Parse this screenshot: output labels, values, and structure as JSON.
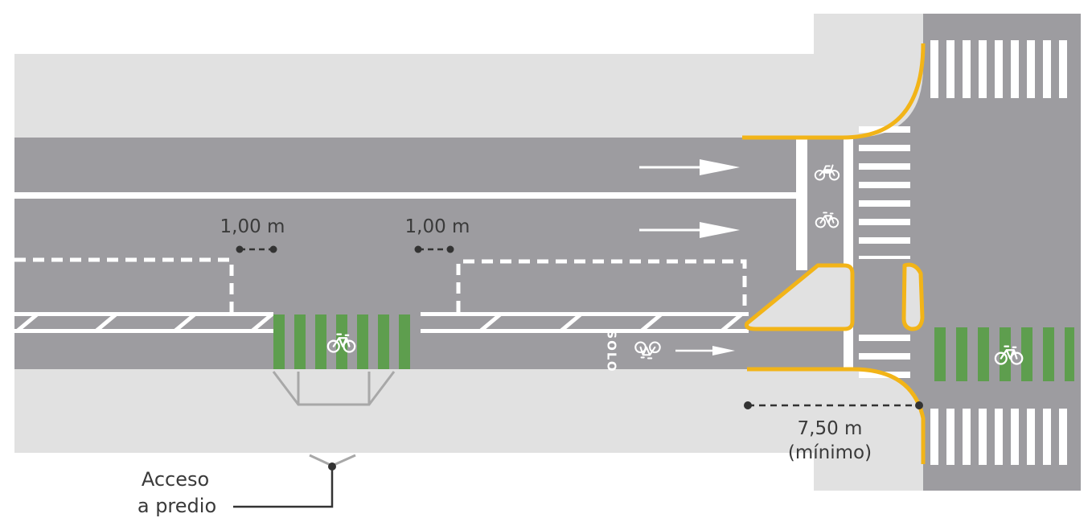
{
  "colors": {
    "road": "#9d9ca0",
    "sidewalk": "#e1e1e1",
    "marking": "#ffffff",
    "curb_highlight": "#f2b418",
    "bike_crossing_green": "#5e9e4e",
    "annotation": "#333333",
    "access_bracket": "#a8a8a8"
  },
  "labels": {
    "spacing_left": "1,00 m",
    "spacing_right": "1,00 m",
    "setback_value": "7,50 m",
    "setback_note": "(mínimo)",
    "access_line1": "Acceso",
    "access_line2": "a predio",
    "lane_text": "SOLO"
  },
  "icons": {
    "travel_arrow": "arrow-right-icon",
    "bicycle": "bicycle-icon",
    "motorcycle": "motorcycle-icon"
  }
}
